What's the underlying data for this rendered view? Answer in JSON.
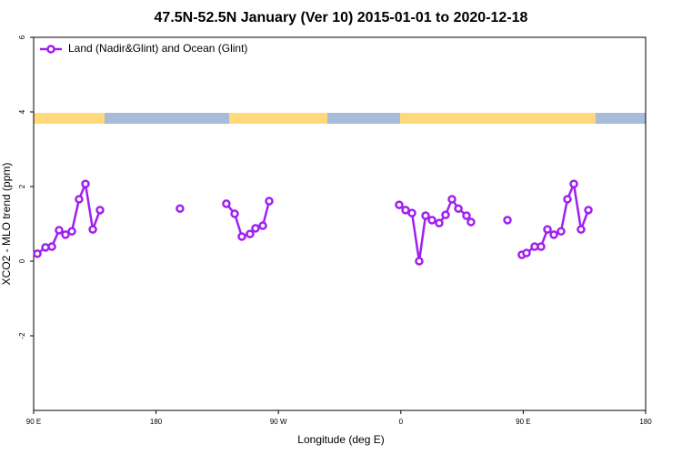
{
  "chart_data": {
    "type": "line",
    "title": "47.5N-52.5N January (Ver 10)   2015-01-01 to 2020-12-18",
    "xlabel": "Longitude (deg E)",
    "ylabel": "XCO2 - MLO trend (ppm)",
    "xlim": [
      90,
      540
    ],
    "ylim": [
      -4,
      6
    ],
    "xticks": [
      {
        "value": 90,
        "label": "90 E"
      },
      {
        "value": 180,
        "label": "180"
      },
      {
        "value": 270,
        "label": "90 W"
      },
      {
        "value": 360,
        "label": "0"
      },
      {
        "value": 450,
        "label": "90 E"
      },
      {
        "value": 540,
        "label": "180"
      }
    ],
    "yticks": [
      -2,
      0,
      2,
      4,
      6
    ],
    "legend": "top-left",
    "series": [
      {
        "name": "Land (Nadir&Glint) and Ocean (Glint)",
        "color": "#a020f0",
        "x": [
          92.7,
          98.7,
          103.4,
          108.7,
          113.4,
          118.1,
          123.4,
          128.1,
          133.5,
          138.8,
          null,
          197.6,
          null,
          231.7,
          237.8,
          243.1,
          249.1,
          253.1,
          258.5,
          263.2,
          null,
          358.8,
          363.5,
          368.2,
          373.5,
          378.2,
          382.9,
          388.2,
          392.9,
          397.6,
          402.3,
          408.3,
          411.6,
          null,
          438.4,
          null,
          449.0,
          452.4,
          458.4,
          463.1,
          467.8,
          472.5,
          477.8,
          482.5,
          487.2,
          492.5,
          497.9
        ],
        "values": [
          0.2,
          0.37,
          0.39,
          0.83,
          0.71,
          0.8,
          1.66,
          2.07,
          0.85,
          1.37,
          null,
          1.41,
          null,
          1.54,
          1.27,
          0.66,
          0.73,
          0.88,
          0.95,
          1.61,
          null,
          1.51,
          1.37,
          1.29,
          0.0,
          1.22,
          1.1,
          1.02,
          1.24,
          1.66,
          1.41,
          1.22,
          1.05,
          null,
          1.1,
          null,
          0.17,
          0.22,
          0.39,
          0.39,
          0.85,
          0.71,
          0.8,
          1.66,
          2.07,
          0.85,
          1.37
        ]
      }
    ]
  }
}
